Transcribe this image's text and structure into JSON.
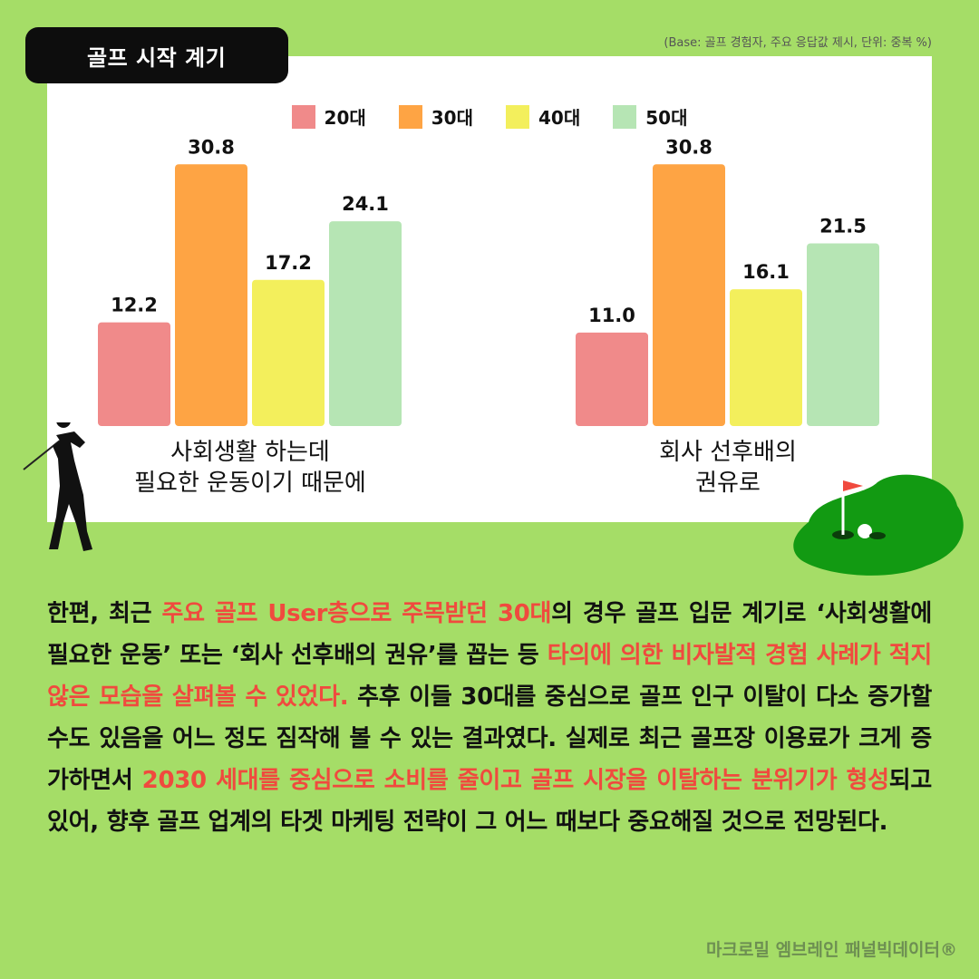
{
  "header": {
    "title": "골프 시작 계기",
    "base_note": "(Base: 골프 경험자, 주요 응답값 제시, 단위: 중복 %)"
  },
  "chart_data": {
    "type": "bar",
    "categories": [
      [
        "사회생활 하는데",
        "필요한 운동이기 때문에"
      ],
      [
        "회사 선후배의",
        "권유로"
      ]
    ],
    "series": [
      {
        "name": "20대",
        "color": "#f08a8a",
        "values": [
          12.2,
          11.0
        ]
      },
      {
        "name": "30대",
        "color": "#fea444",
        "values": [
          30.8,
          30.8
        ]
      },
      {
        "name": "40대",
        "color": "#f3ef5c",
        "values": [
          17.2,
          16.1
        ]
      },
      {
        "name": "50대",
        "color": "#b6e5b4",
        "values": [
          24.1,
          21.5
        ]
      }
    ],
    "ylim": [
      0,
      32
    ],
    "grid": false,
    "legend_position": "top-center"
  },
  "body": {
    "segments": [
      {
        "text": "한편, 최근 ",
        "highlight": false
      },
      {
        "text": "주요 골프 User층으로 주목받던 30대",
        "highlight": true
      },
      {
        "text": "의 경우 골프 입문 계기로 ‘사회생활에 필요한 운동’ 또는 ‘회사 선후배의 권유’를 꼽는 등 ",
        "highlight": false
      },
      {
        "text": "타의에 의한 비자발적 경험 사례가 적지 않은 모습을 살펴볼 수 있었다.",
        "highlight": true
      },
      {
        "text": " 추후 이들 30대를 중심으로 골프 인구 이탈이 다소 증가할 수도 있음을 어느 정도 짐작해 볼 수 있는 결과였다. 실제로 최근 골프장 이용료가 크게 증가하면서 ",
        "highlight": false
      },
      {
        "text": "2030 세대를 중심으로 소비를 줄이고 골프 시장을 이탈하는 분위기가 형성",
        "highlight": true
      },
      {
        "text": "되고 있어, 향후 골프 업계의 타겟 마케팅 전략이 그 어느 때보다 중요해질 것으로 전망된다.",
        "highlight": false
      }
    ]
  },
  "footer": {
    "credit": "마크로밀 엠브레인 패널빅데이터®"
  },
  "colors": {
    "background": "#a5dd67",
    "highlight": "#f04a3e",
    "panel": "#ffffff",
    "green": "#129a12",
    "flag": "#f04a3e"
  },
  "icons": [
    "golfer-silhouette-icon",
    "golf-green-flag-icon"
  ]
}
